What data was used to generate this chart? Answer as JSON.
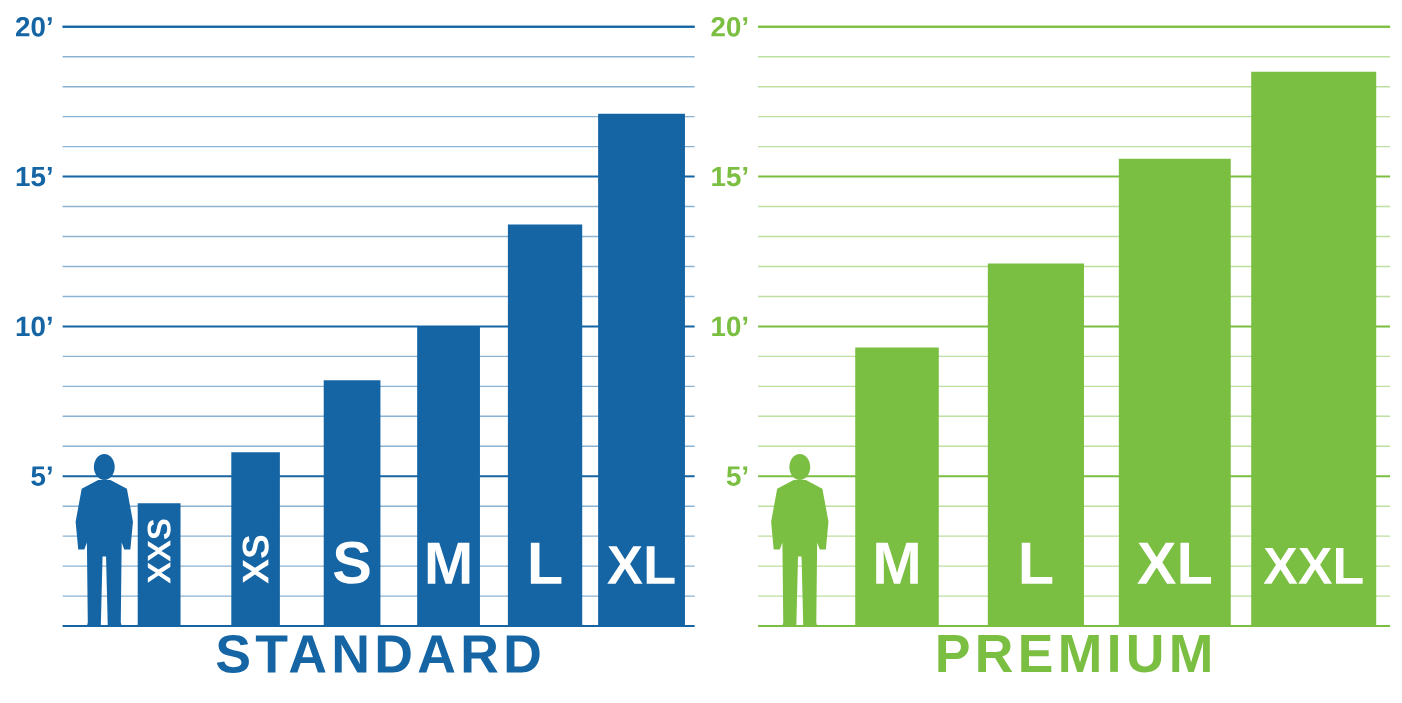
{
  "chart_data": [
    {
      "type": "bar",
      "title": "STANDARD",
      "categories": [
        "XXS",
        "XS",
        "S",
        "M",
        "L",
        "XL"
      ],
      "values": [
        4.1,
        5.8,
        8.2,
        10.0,
        13.4,
        17.1
      ],
      "color": "#1565a5",
      "ylim": [
        0,
        20
      ],
      "yticks": [
        {
          "value": 1,
          "label": null
        },
        {
          "value": 2,
          "label": null
        },
        {
          "value": 3,
          "label": null
        },
        {
          "value": 4,
          "label": null
        },
        {
          "value": 5,
          "label": "5’"
        },
        {
          "value": 6,
          "label": null
        },
        {
          "value": 7,
          "label": null
        },
        {
          "value": 8,
          "label": null
        },
        {
          "value": 9,
          "label": null
        },
        {
          "value": 10,
          "label": "10’"
        },
        {
          "value": 11,
          "label": null
        },
        {
          "value": 12,
          "label": null
        },
        {
          "value": 13,
          "label": null
        },
        {
          "value": 14,
          "label": null
        },
        {
          "value": 15,
          "label": "15’"
        },
        {
          "value": 16,
          "label": null
        },
        {
          "value": 17,
          "label": null
        },
        {
          "value": 18,
          "label": null
        },
        {
          "value": 19,
          "label": null
        },
        {
          "value": 20,
          "label": "20’"
        }
      ],
      "grid": "y"
    },
    {
      "type": "bar",
      "title": "PREMIUM",
      "categories": [
        "M",
        "L",
        "XL",
        "XXL"
      ],
      "values": [
        9.3,
        12.1,
        15.6,
        18.5
      ],
      "color": "#7bbf42",
      "ylim": [
        0,
        20
      ],
      "yticks": [
        {
          "value": 1,
          "label": null
        },
        {
          "value": 2,
          "label": null
        },
        {
          "value": 3,
          "label": null
        },
        {
          "value": 4,
          "label": null
        },
        {
          "value": 5,
          "label": "5’"
        },
        {
          "value": 6,
          "label": null
        },
        {
          "value": 7,
          "label": null
        },
        {
          "value": 8,
          "label": null
        },
        {
          "value": 9,
          "label": null
        },
        {
          "value": 10,
          "label": "10’"
        },
        {
          "value": 11,
          "label": null
        },
        {
          "value": 12,
          "label": null
        },
        {
          "value": 13,
          "label": null
        },
        {
          "value": 14,
          "label": null
        },
        {
          "value": 15,
          "label": "15’"
        },
        {
          "value": 16,
          "label": null
        },
        {
          "value": 17,
          "label": null
        },
        {
          "value": 18,
          "label": null
        },
        {
          "value": 19,
          "label": null
        },
        {
          "value": 20,
          "label": "20’"
        }
      ],
      "grid": "y"
    }
  ]
}
